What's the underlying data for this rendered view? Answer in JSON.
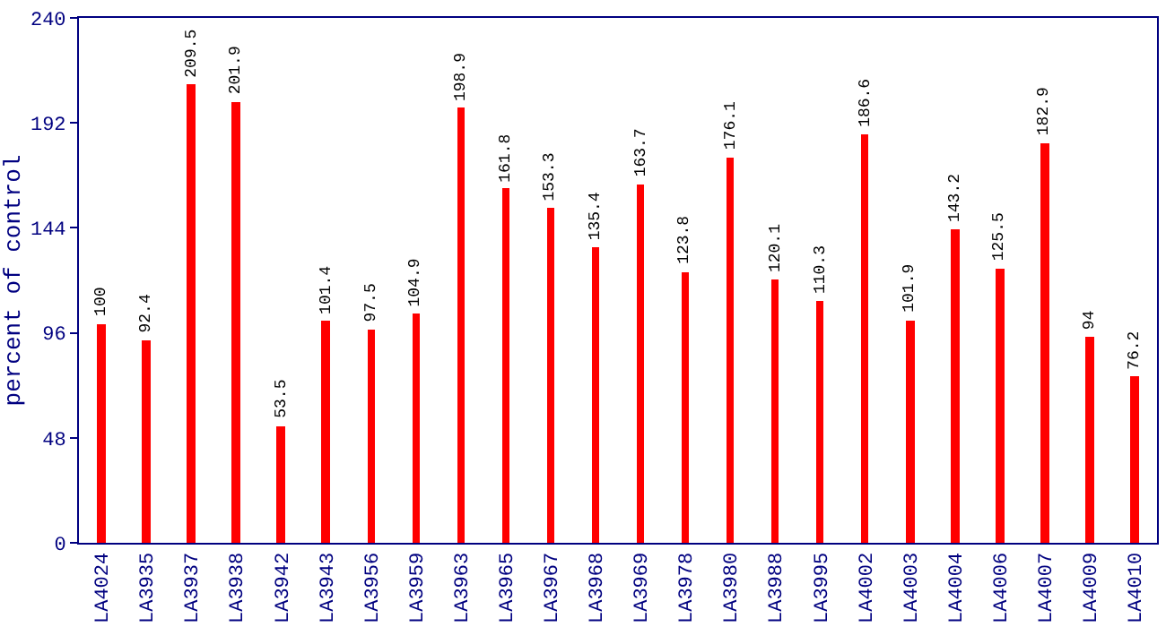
{
  "chart_data": {
    "type": "bar",
    "ylabel": "percent of control",
    "categories": [
      "LA4024",
      "LA3935",
      "LA3937",
      "LA3938",
      "LA3942",
      "LA3943",
      "LA3956",
      "LA3959",
      "LA3963",
      "LA3965",
      "LA3967",
      "LA3968",
      "LA3969",
      "LA3978",
      "LA3980",
      "LA3988",
      "LA3995",
      "LA4002",
      "LA4003",
      "LA4004",
      "LA4006",
      "LA4007",
      "LA4009",
      "LA4010"
    ],
    "values": [
      100,
      92.4,
      209.5,
      201.9,
      53.5,
      101.4,
      97.5,
      104.9,
      198.9,
      161.8,
      153.3,
      135.4,
      163.7,
      123.8,
      176.1,
      120.1,
      110.3,
      186.6,
      101.9,
      143.2,
      125.5,
      182.9,
      94,
      76.2
    ],
    "color": "#ff0000",
    "ylim": [
      0,
      240
    ],
    "yticks": [
      0,
      48,
      96,
      144,
      192,
      240
    ],
    "grid": false,
    "data_labels": true
  }
}
